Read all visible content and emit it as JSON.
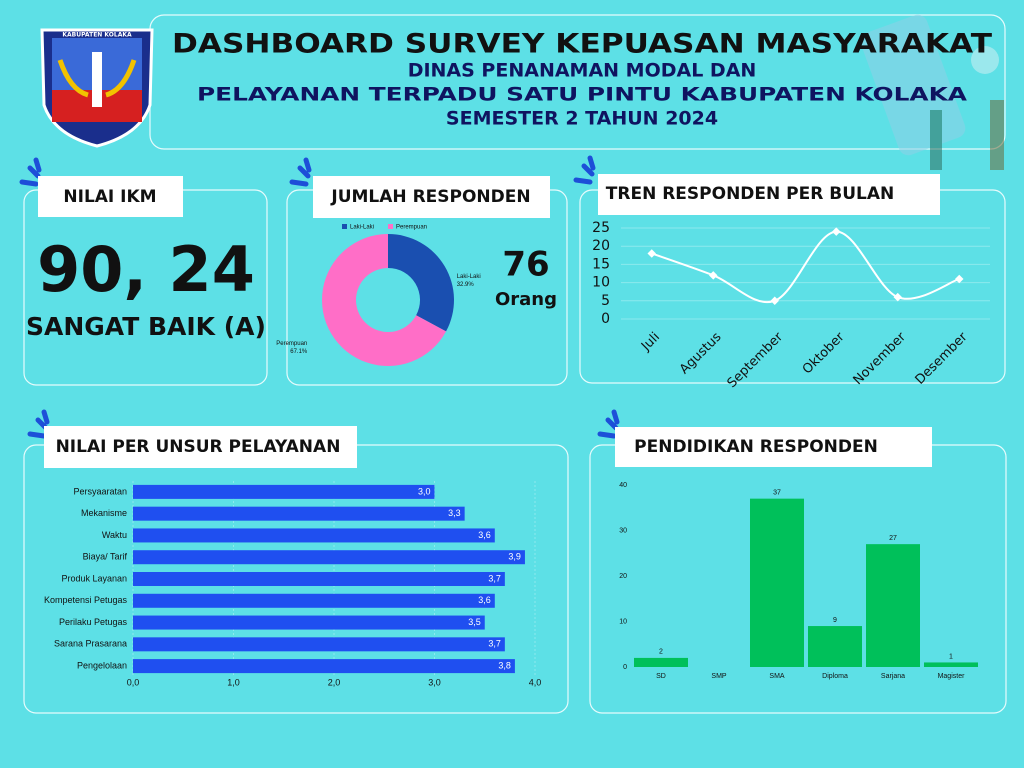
{
  "header": {
    "logo_text": "KABUPATEN KOLAKA",
    "title": "DASHBOARD SURVEY KEPUASAN MASYARAKAT",
    "lines": [
      "DINAS PENANAMAN MODAL DAN",
      "PELAYANAN TERPADU SATU PINTU KABUPATEN KOLAKA",
      "SEMESTER 2 TAHUN 2024"
    ]
  },
  "ikm": {
    "title": "NILAI IKM",
    "value": "90, 24",
    "grade": "SANGAT BAIK (A)"
  },
  "responden": {
    "count": "76",
    "unit": "Orang"
  },
  "chart_data": [
    {
      "type": "pie",
      "title": "JUMLAH RESPONDEN",
      "donut": true,
      "categories": [
        "Laki-Laki",
        "Perempuan"
      ],
      "values": [
        32.9,
        67.1
      ],
      "value_labels": [
        "32.9%",
        "67.1%"
      ],
      "colors": [
        "#1a4fb0",
        "#ff6ec7"
      ],
      "legend": "top"
    },
    {
      "type": "line",
      "title": "TREN RESPONDEN PER BULAN",
      "categories": [
        "Juli",
        "Agustus",
        "September",
        "Oktober",
        "November",
        "Desember"
      ],
      "values": [
        18,
        12,
        5,
        24,
        6,
        11
      ],
      "color": "#ffffff",
      "ylim": [
        0,
        25
      ],
      "yticks": [
        0,
        5,
        10,
        15,
        20,
        25
      ],
      "grid": true
    },
    {
      "type": "bar",
      "orientation": "horizontal",
      "title": "NILAI PER UNSUR PELAYANAN",
      "categories": [
        "Persyaaratan",
        "Mekanisme",
        "Waktu",
        "Biaya/ Tarif",
        "Produk Layanan",
        "Kompetensi Petugas",
        "Perilaku Petugas",
        "Sarana Prasarana",
        "Pengelolaan"
      ],
      "values": [
        3.0,
        3.3,
        3.6,
        3.9,
        3.7,
        3.6,
        3.5,
        3.7,
        3.8
      ],
      "value_labels": [
        "3,0",
        "3,3",
        "3,6",
        "3,9",
        "3,7",
        "3,6",
        "3,5",
        "3,7",
        "3,8"
      ],
      "color": "#1f4ff0",
      "xlim": [
        0,
        4
      ],
      "xticks": [
        {
          "value": 0,
          "label": "0,0"
        },
        {
          "value": 1,
          "label": "1,0"
        },
        {
          "value": 2,
          "label": "2,0"
        },
        {
          "value": 3,
          "label": "3,0"
        },
        {
          "value": 4,
          "label": "4,0"
        }
      ]
    },
    {
      "type": "bar",
      "orientation": "vertical",
      "title": "PENDIDIKAN RESPONDEN",
      "categories": [
        "SD",
        "SMP",
        "SMA",
        "Diploma",
        "Sarjana",
        "Magister"
      ],
      "values": [
        2,
        0,
        37,
        9,
        27,
        1
      ],
      "color": "#00c05a",
      "ylim": [
        0,
        40
      ],
      "yticks": [
        0,
        10,
        20,
        30,
        40
      ]
    }
  ]
}
